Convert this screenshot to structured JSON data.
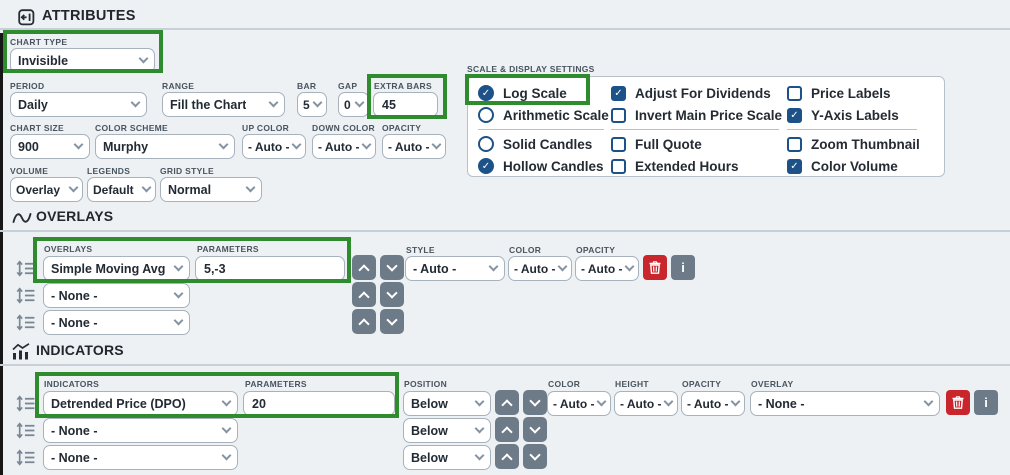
{
  "panel": {
    "title": "ATTRIBUTES"
  },
  "icons": {
    "info": "i",
    "check": "✓"
  },
  "colors": {
    "highlight_green": "#2e8b2e",
    "accent_blue": "#1d5289",
    "danger_red": "#c9252d",
    "slate_gray": "#6d7a87"
  },
  "attributes": {
    "chart_type": {
      "label": "CHART TYPE",
      "value": "Invisible"
    },
    "period": {
      "label": "PERIOD",
      "value": "Daily"
    },
    "range": {
      "label": "RANGE",
      "value": "Fill the Chart"
    },
    "bar": {
      "label": "BAR",
      "value": "5"
    },
    "gap": {
      "label": "GAP",
      "value": "0"
    },
    "extra_bars": {
      "label": "EXTRA BARS",
      "value": "45"
    },
    "chart_size": {
      "label": "CHART SIZE",
      "value": "900"
    },
    "color_scheme": {
      "label": "COLOR SCHEME",
      "value": "Murphy"
    },
    "up_color": {
      "label": "UP COLOR",
      "value": "- Auto -"
    },
    "down_color": {
      "label": "DOWN COLOR",
      "value": "- Auto -"
    },
    "opacity": {
      "label": "OPACITY",
      "value": "- Auto -"
    },
    "volume": {
      "label": "VOLUME",
      "value": "Overlay"
    },
    "legends": {
      "label": "LEGENDS",
      "value": "Default"
    },
    "grid_style": {
      "label": "GRID STYLE",
      "value": "Normal"
    }
  },
  "scale_settings": {
    "title": "SCALE & DISPLAY SETTINGS",
    "columns": [
      [
        {
          "type": "radio",
          "label": "Log Scale",
          "checked": true,
          "highlighted": true
        },
        {
          "type": "radio",
          "label": "Arithmetic Scale",
          "checked": false
        },
        {
          "type": "divider"
        },
        {
          "type": "radio",
          "label": "Solid Candles",
          "checked": false
        },
        {
          "type": "radio",
          "label": "Hollow Candles",
          "checked": true
        }
      ],
      [
        {
          "type": "checkbox",
          "label": "Adjust For Dividends",
          "checked": true
        },
        {
          "type": "checkbox",
          "label": "Invert Main Price Scale",
          "checked": false
        },
        {
          "type": "divider"
        },
        {
          "type": "checkbox",
          "label": "Full Quote",
          "checked": false
        },
        {
          "type": "checkbox",
          "label": "Extended Hours",
          "checked": false
        }
      ],
      [
        {
          "type": "checkbox",
          "label": "Price Labels",
          "checked": false
        },
        {
          "type": "checkbox",
          "label": "Y-Axis Labels",
          "checked": true
        },
        {
          "type": "divider"
        },
        {
          "type": "checkbox",
          "label": "Zoom Thumbnail",
          "checked": false
        },
        {
          "type": "checkbox",
          "label": "Color Volume",
          "checked": true
        }
      ]
    ]
  },
  "overlays": {
    "title": "OVERLAYS",
    "labels": {
      "overlays": "OVERLAYS",
      "parameters": "PARAMETERS",
      "style": "STYLE",
      "color": "COLOR",
      "opacity": "OPACITY"
    },
    "rows": [
      {
        "overlay": "Simple Moving Avg",
        "parameters": "5,-3",
        "style": "- Auto -",
        "color": "- Auto -",
        "opacity": "- Auto -"
      },
      {
        "overlay": "- None -"
      },
      {
        "overlay": "- None -"
      }
    ]
  },
  "indicators": {
    "title": "INDICATORS",
    "labels": {
      "indicators": "INDICATORS",
      "parameters": "PARAMETERS",
      "position": "POSITION",
      "color": "COLOR",
      "height": "HEIGHT",
      "opacity": "OPACITY",
      "overlay": "OVERLAY"
    },
    "rows": [
      {
        "indicator": "Detrended Price (DPO)",
        "parameters": "20",
        "position": "Below",
        "color": "- Auto -",
        "height": "- Auto -",
        "opacity": "- Auto -",
        "overlay": "- None -"
      },
      {
        "indicator": "- None -",
        "position": "Below"
      },
      {
        "indicator": "- None -",
        "position": "Below"
      }
    ]
  }
}
